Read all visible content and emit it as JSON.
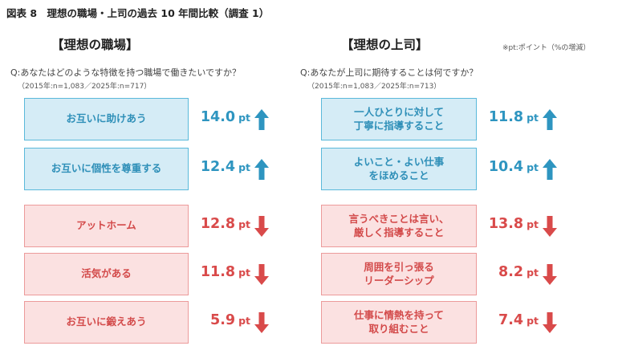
{
  "figure_title": "図表 8　理想の職場・上司の過去 10 年間比較（調査 1）",
  "note": "※pt:ポイント（%の増減）",
  "colors": {
    "up": "#2e95c0",
    "down": "#d94a4a"
  },
  "chart_data": [
    {
      "type": "table",
      "title": "【理想の職場】",
      "question": "Q:あなたはどのような特徴を持つ職場で働きたいですか？",
      "sample": "（2015年:n=1,083／2025年:n=717）",
      "unit": "pt",
      "items": [
        {
          "label": "お互いに助けあう",
          "value": "14.0",
          "direction": "up"
        },
        {
          "label": "お互いに個性を尊重する",
          "value": "12.4",
          "direction": "up"
        },
        {
          "label": "アットホーム",
          "value": "12.8",
          "direction": "down"
        },
        {
          "label": "活気がある",
          "value": "11.8",
          "direction": "down"
        },
        {
          "label": "お互いに鍛えあう",
          "value": "5.9",
          "direction": "down"
        }
      ]
    },
    {
      "type": "table",
      "title": "【理想の上司】",
      "question": "Q:あなたが上司に期待することは何ですか？",
      "sample": "（2015年:n=1,083／2025年:n=713）",
      "unit": "pt",
      "items": [
        {
          "label": "一人ひとりに対して\n丁寧に指導すること",
          "value": "11.8",
          "direction": "up"
        },
        {
          "label": "よいこと・よい仕事\nをほめること",
          "value": "10.4",
          "direction": "up"
        },
        {
          "label": "言うべきことは言い、\n厳しく指導すること",
          "value": "13.8",
          "direction": "down"
        },
        {
          "label": "周囲を引っ張る\nリーダーシップ",
          "value": "8.2",
          "direction": "down"
        },
        {
          "label": "仕事に情熱を持って\n取り組むこと",
          "value": "7.4",
          "direction": "down"
        }
      ]
    }
  ]
}
